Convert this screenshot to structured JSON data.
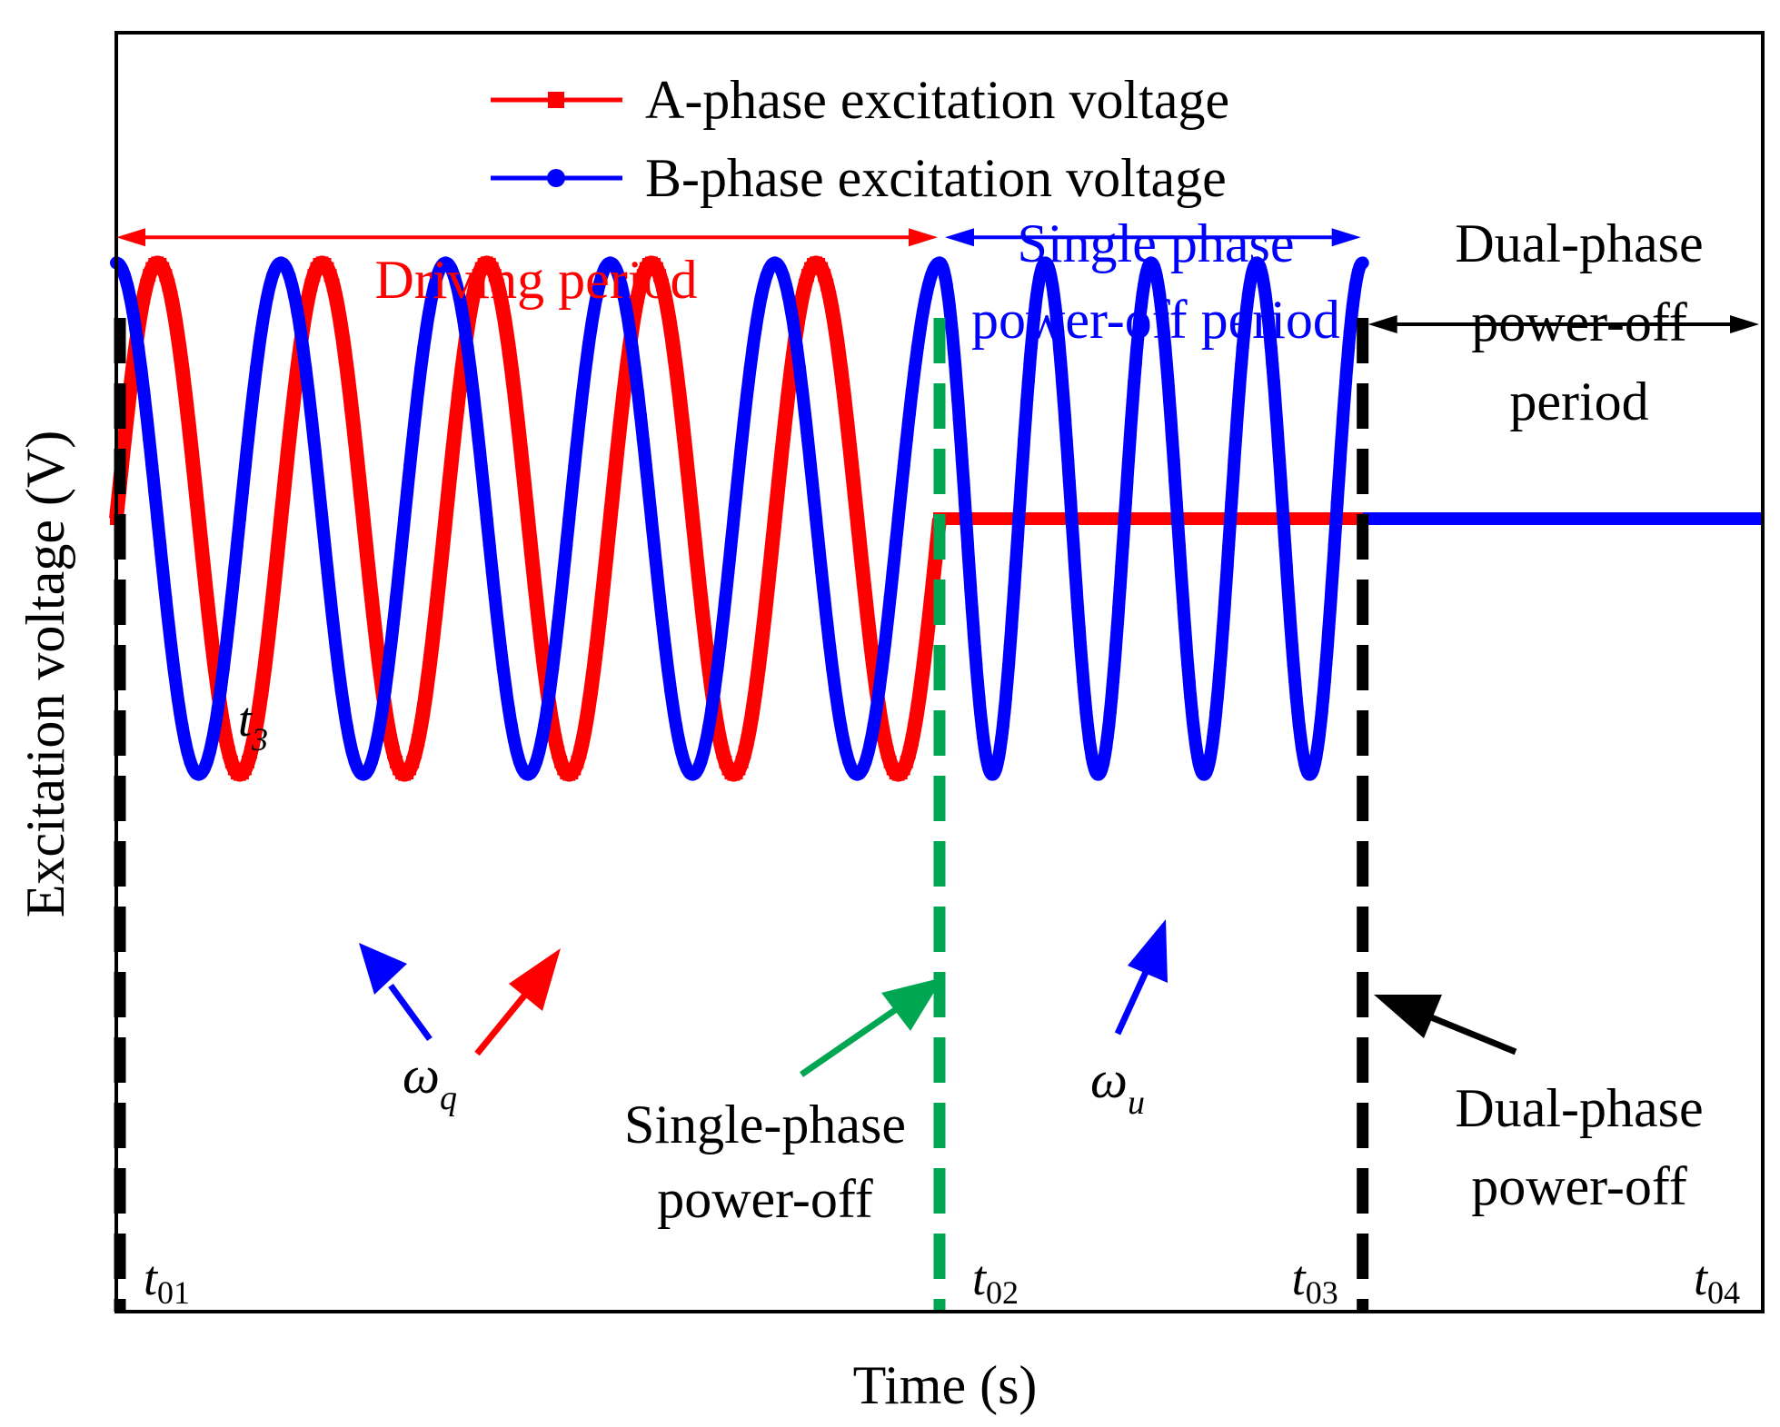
{
  "chart_data": {
    "type": "line",
    "title": "",
    "xlabel": "Time (s)",
    "ylabel": "Excitation voltage (V)",
    "xlim": [
      0,
      1.0
    ],
    "ylim": [
      -1.55,
      0.95
    ],
    "grid": false,
    "legend_position": "top-center",
    "colors": {
      "a_phase": "#ff0000",
      "b_phase": "#0000ff",
      "driving": "#ff0000",
      "single": "#0000ff",
      "dual": "#000000",
      "green": "#00a651",
      "axis": "#000000"
    },
    "series": [
      {
        "name": "A-phase excitation voltage",
        "marker": "square",
        "segments": [
          {
            "type": "sine",
            "t_start": 0.0,
            "t_end": 0.5,
            "amplitude": 0.5,
            "offset": 0.0,
            "cycles": 5,
            "phase_deg": 0
          },
          {
            "type": "constant",
            "t_start": 0.5,
            "t_end": 1.0,
            "value": 0.0
          }
        ]
      },
      {
        "name": "B-phase excitation voltage",
        "marker": "circle",
        "segments": [
          {
            "type": "sine",
            "t_start": 0.0,
            "t_end": 0.5,
            "amplitude": 0.5,
            "offset": 0.0,
            "cycles": 5,
            "phase_deg": 90
          },
          {
            "type": "sine",
            "t_start": 0.5,
            "t_end": 0.757,
            "amplitude": 0.5,
            "offset": 0.0,
            "cycles": 4,
            "phase_deg": 90
          },
          {
            "type": "constant",
            "t_start": 0.757,
            "t_end": 1.0,
            "value": 0.0
          }
        ]
      }
    ],
    "events": [
      {
        "id": "t01",
        "label": "t",
        "sub": "01",
        "t": 0.0,
        "line_color": "#000000"
      },
      {
        "id": "t02",
        "label": "t",
        "sub": "02",
        "t": 0.5,
        "line_color": "#00a651"
      },
      {
        "id": "t03",
        "label": "t",
        "sub": "03",
        "t": 0.757,
        "line_color": "#000000"
      },
      {
        "id": "t04",
        "label": "t",
        "sub": "04",
        "t": 1.0,
        "line_color": null
      }
    ],
    "periods": {
      "driving": {
        "label": "Driving period",
        "t_start": 0.0,
        "t_end": 0.5,
        "y": 0.55
      },
      "single": {
        "line1": "Single phase",
        "line2": "power-off period",
        "t_start": 0.5,
        "t_end": 0.757,
        "y": 0.55
      },
      "dual": {
        "line1": "Dual-phase",
        "line2": "power-off",
        "line3": "period",
        "t_start": 0.757,
        "t_end": 1.0,
        "y": 0.38
      }
    },
    "annotations": {
      "t3": {
        "label": "t",
        "sub": "3"
      },
      "omega_q": {
        "label": "ω",
        "sub": "q"
      },
      "omega_u": {
        "label": "ω",
        "sub": "u"
      },
      "single_off": {
        "line1": "Single-phase",
        "line2": "power-off"
      },
      "dual_off": {
        "line1": "Dual-phase",
        "line2": "power-off"
      }
    }
  }
}
